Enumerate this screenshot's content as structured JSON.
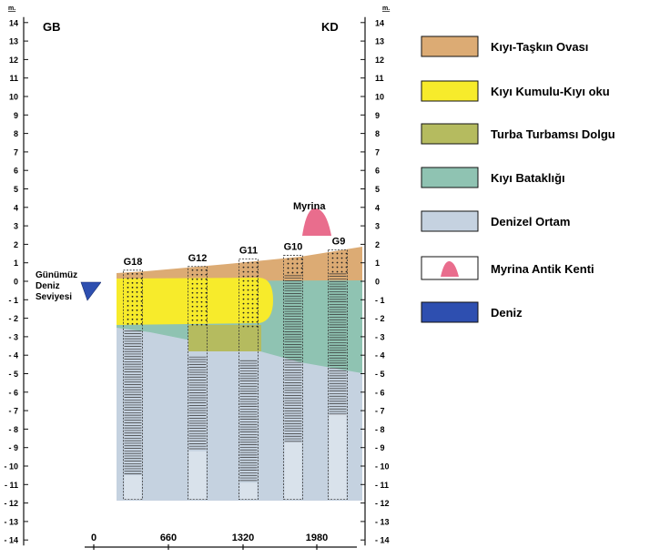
{
  "header": {
    "left": "GB",
    "right": "KD",
    "unit_left": "m.",
    "unit_right": "m."
  },
  "depth_axis": {
    "min": -14,
    "max": 14,
    "step": 1
  },
  "distance_axis": {
    "ticks": [
      "0",
      "660",
      "1320",
      "1980"
    ]
  },
  "annotations": {
    "sea_level": [
      "Günümüz",
      "Deniz",
      "Seviyesi"
    ],
    "city": "Myrina"
  },
  "boreholes": [
    {
      "id": "G18",
      "top": 0.6,
      "sand_bottom": -2.4,
      "bottom": -11.8
    },
    {
      "id": "G12",
      "top": 0.8,
      "sand_bottom": -2.4,
      "peat_bottom": -3.8,
      "bottom": -11.8
    },
    {
      "id": "G11",
      "top": 1.2,
      "sand_bottom": -2.6,
      "peat_bottom": -4.0,
      "bottom": -11.8
    },
    {
      "id": "G10",
      "top": 1.4,
      "floodplain_bottom": 0.4,
      "marsh_bottom": -4.0,
      "bottom": -11.8
    },
    {
      "id": "G9",
      "top": 1.7,
      "floodplain_bottom": 0.5,
      "marsh_bottom": -4.5,
      "bottom": -11.8
    }
  ],
  "legend": [
    {
      "key": "floodplain",
      "label": "Kıyı-Taşkın Ovası",
      "color": "#dcab74"
    },
    {
      "key": "beach",
      "label": "Kıyı Kumulu-Kıyı oku",
      "color": "#f7eb2b"
    },
    {
      "key": "peat",
      "label": "Turba Turbamsı Dolgu",
      "color": "#b5bb5f"
    },
    {
      "key": "marsh",
      "label": "Kıyı Bataklığı",
      "color": "#8fc3b2"
    },
    {
      "key": "marine",
      "label": "Denizel Ortam",
      "color": "#c5d2e0"
    },
    {
      "key": "ancient-city",
      "label": "Myrina Antik Kenti",
      "color": "#e96d8d"
    },
    {
      "key": "sea",
      "label": "Deniz",
      "color": "#2e4fb0"
    }
  ]
}
